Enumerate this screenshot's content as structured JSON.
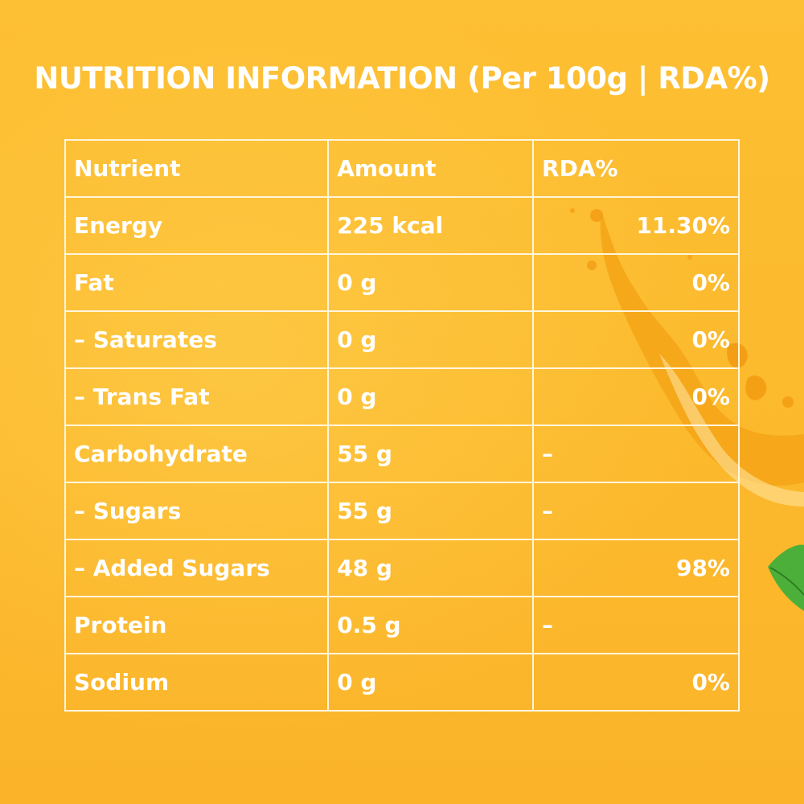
{
  "title": "NUTRITION INFORMATION (Per 100g | RDA%)",
  "table": {
    "headers": {
      "nutrient": "Nutrient",
      "amount": "Amount",
      "rda": "RDA%"
    },
    "rows": [
      {
        "nutrient": "Energy",
        "amount": "225 kcal",
        "rda": "11.30%"
      },
      {
        "nutrient": "Fat",
        "amount": "0 g",
        "rda": "0%"
      },
      {
        "nutrient": "– Saturates",
        "amount": "0 g",
        "rda": "0%"
      },
      {
        "nutrient": "– Trans Fat",
        "amount": "0 g",
        "rda": "0%"
      },
      {
        "nutrient": "Carbohydrate",
        "amount": "55 g",
        "rda": "–"
      },
      {
        "nutrient": "– Sugars",
        "amount": "55 g",
        "rda": "–"
      },
      {
        "nutrient": "– Added Sugars",
        "amount": "48 g",
        "rda": "98%"
      },
      {
        "nutrient": "Protein",
        "amount": "0.5 g",
        "rda": "–"
      },
      {
        "nutrient": "Sodium",
        "amount": "0 g",
        "rda": "0%"
      }
    ]
  },
  "colors": {
    "background": "#fcb92c",
    "text": "#ffffff",
    "grid": "#fff6dd",
    "splash": "#f59e0b",
    "leaf": "#4caf3a"
  }
}
